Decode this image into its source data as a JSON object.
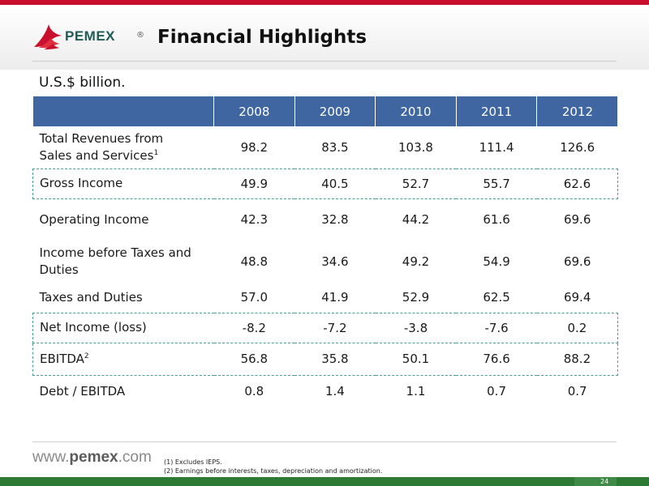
{
  "header": {
    "logo_text": "PEMEX",
    "logo_reg": "®",
    "title": "Financial Highlights"
  },
  "units": "U.S.$ billion.",
  "table": {
    "header_label": "",
    "years": [
      "2008",
      "2009",
      "2010",
      "2011",
      "2012"
    ],
    "rows": [
      {
        "label_lines": [
          "Total Revenues from",
          "Sales and Services"
        ],
        "sup": "1",
        "values": [
          "98.2",
          "83.5",
          "103.8",
          "111.4",
          "126.6"
        ],
        "boxed": false
      },
      {
        "label_lines": [
          "Gross Income"
        ],
        "sup": "",
        "values": [
          "49.9",
          "40.5",
          "52.7",
          "55.7",
          "62.6"
        ],
        "boxed": true
      },
      {
        "label_lines": [
          "Operating Income"
        ],
        "sup": "",
        "values": [
          "42.3",
          "32.8",
          "44.2",
          "61.6",
          "69.6"
        ],
        "boxed": false
      },
      {
        "label_lines": [
          "Income before Taxes and",
          "Duties"
        ],
        "sup": "",
        "values": [
          "48.8",
          "34.6",
          "49.2",
          "54.9",
          "69.6"
        ],
        "boxed": false
      },
      {
        "label_lines": [
          "Taxes and Duties"
        ],
        "sup": "",
        "values": [
          "57.0",
          "41.9",
          "52.9",
          "62.5",
          "69.4"
        ],
        "boxed": false
      },
      {
        "label_lines": [
          "Net Income (loss)"
        ],
        "sup": "",
        "values": [
          "-8.2",
          "-7.2",
          "-3.8",
          "-7.6",
          "0.2"
        ],
        "boxed": true
      },
      {
        "label_lines": [
          "EBITDA"
        ],
        "sup": "2",
        "values": [
          "56.8",
          "35.8",
          "50.1",
          "76.6",
          "88.2"
        ],
        "boxed": true
      },
      {
        "label_lines": [
          "Debt / EBITDA"
        ],
        "sup": "",
        "values": [
          "0.8",
          "1.4",
          "1.1",
          "0.7",
          "0.7"
        ],
        "boxed": false
      }
    ]
  },
  "footer": {
    "website_prefix": "www.",
    "website_brand": "pemex",
    "website_suffix": ".com",
    "notes": [
      "(1) Excludes IEPS.",
      "(2) Earnings before interests, taxes, depreciation and amortization."
    ],
    "page_number": "24"
  },
  "colors": {
    "brand_red": "#c8102e",
    "header_blue": "#3f66a0",
    "dashed_teal": "#4f9a92",
    "footer_green": "#2d7a35"
  }
}
